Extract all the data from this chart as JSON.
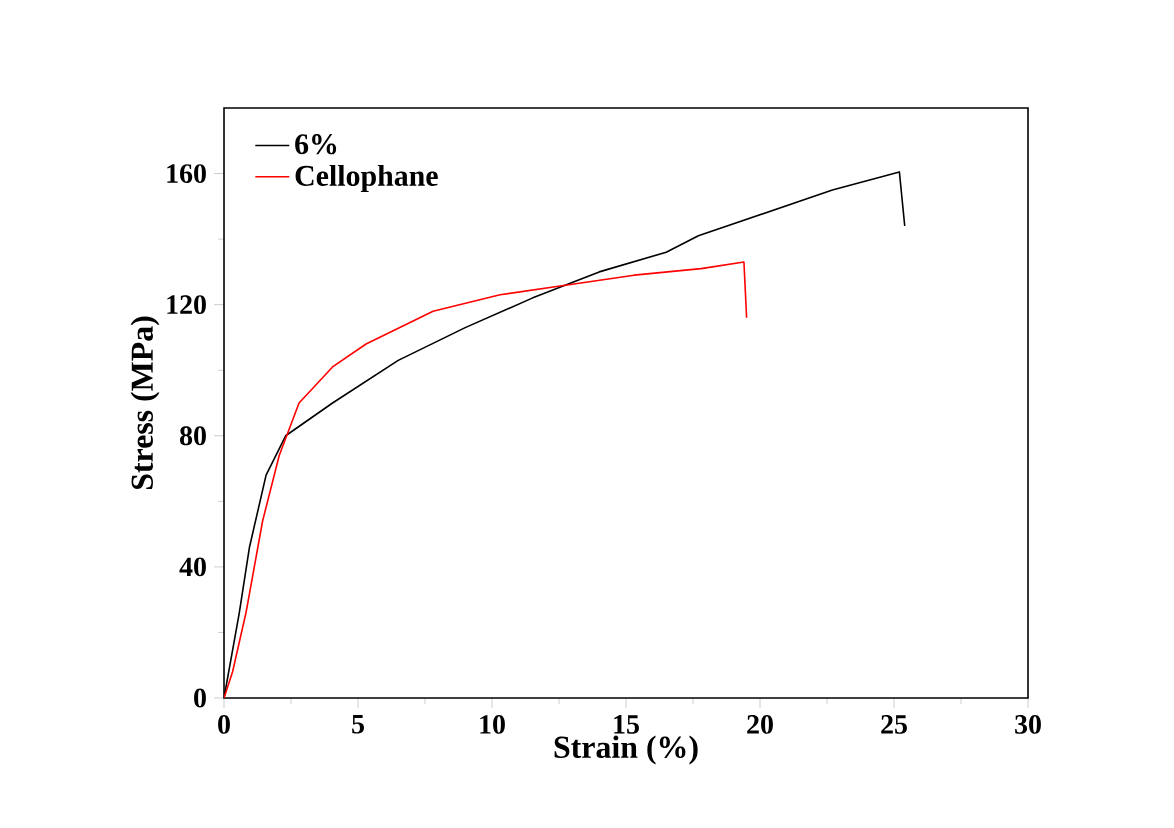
{
  "chart_data": {
    "type": "line",
    "xlabel": "Strain (%)",
    "ylabel": "Stress (MPa)",
    "xlim": [
      0,
      30
    ],
    "ylim": [
      0,
      180
    ],
    "xticks": [
      0,
      5,
      10,
      15,
      20,
      25,
      30
    ],
    "yticks": [
      0,
      40,
      80,
      120,
      160
    ],
    "legend": "top left",
    "grid": false,
    "series": [
      {
        "name": "6%",
        "color": "#000000",
        "x": [
          0,
          0.57,
          0.95,
          1.57,
          2.3,
          4.05,
          6.5,
          9.0,
          11.5,
          14,
          16.5,
          17.7,
          20.2,
          22.7,
          25.2,
          25.4
        ],
        "values": [
          0,
          26,
          46,
          68,
          80,
          90,
          103,
          113,
          122,
          130,
          136,
          141,
          148,
          155,
          160.5,
          144
        ]
      },
      {
        "name": "Cellophane",
        "color": "#ff0000",
        "x": [
          0,
          0.32,
          0.82,
          1.44,
          2.06,
          2.8,
          4.05,
          5.3,
          7.8,
          10.3,
          12.8,
          15.3,
          17.8,
          19.4,
          19.5
        ],
        "values": [
          0,
          8,
          26,
          54,
          74,
          90,
          101,
          108,
          118,
          123,
          126,
          129,
          131,
          133,
          116
        ]
      }
    ]
  }
}
